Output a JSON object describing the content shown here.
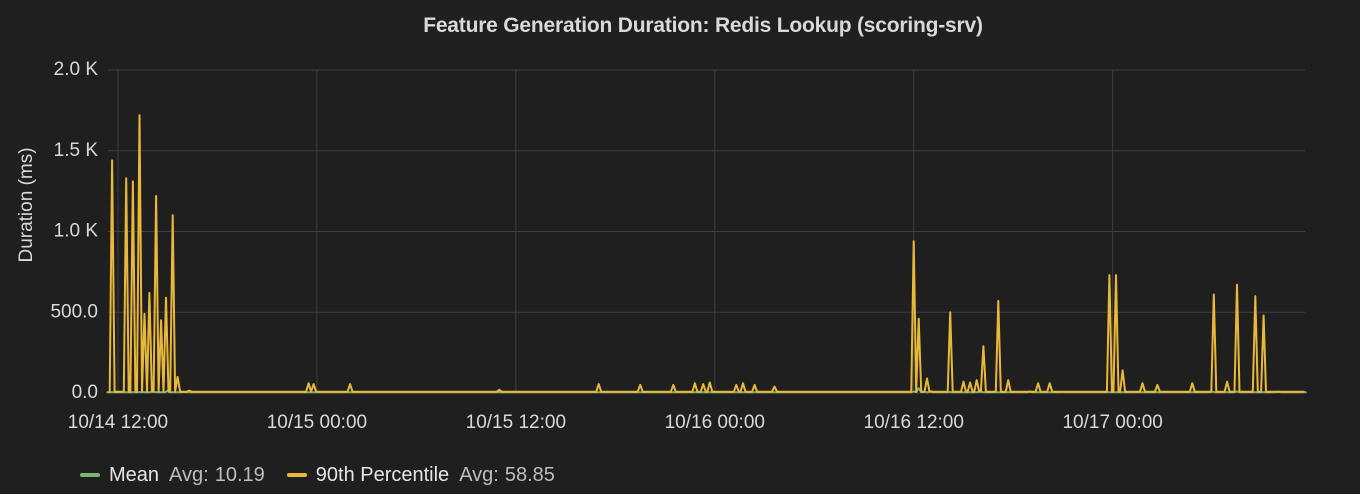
{
  "panel": {
    "title": "Feature Generation Duration: Redis Lookup (scoring-srv)"
  },
  "colors": {
    "background": "#1f1f20",
    "grid": "#3e3f42",
    "text": "#d8d9da",
    "mean": "#7eb26d",
    "p90": "#eab839"
  },
  "legend": {
    "items": [
      {
        "name": "Mean",
        "avg_label": "Avg:",
        "avg_value": "10.19",
        "color": "#7eb26d"
      },
      {
        "name": "90th Percentile",
        "avg_label": "Avg:",
        "avg_value": "58.85",
        "color": "#eab839"
      }
    ]
  },
  "chart_data": {
    "type": "line",
    "title": "Feature Generation Duration: Redis Lookup (scoring-srv)",
    "xlabel": "",
    "ylabel": "Duration (ms)",
    "x_unit": "hours",
    "xlim": [
      -0.6,
      71.6
    ],
    "ylim": [
      0,
      2000
    ],
    "grid": true,
    "legend_position": "bottom-left",
    "y_ticks": [
      {
        "value": 0,
        "label": "0.0"
      },
      {
        "value": 500,
        "label": "500.0"
      },
      {
        "value": 1000,
        "label": "1.0 K"
      },
      {
        "value": 1500,
        "label": "1.5 K"
      },
      {
        "value": 2000,
        "label": "2.0 K"
      }
    ],
    "x_ticks": [
      {
        "value": 0,
        "label": "10/14 12:00"
      },
      {
        "value": 12,
        "label": "10/15 00:00"
      },
      {
        "value": 24,
        "label": "10/15 12:00"
      },
      {
        "value": 36,
        "label": "10/16 00:00"
      },
      {
        "value": 48,
        "label": "10/16 12:00"
      },
      {
        "value": 60,
        "label": "10/17 00:00"
      }
    ],
    "series": [
      {
        "name": "Mean",
        "color": "#7eb26d",
        "baseline": 5,
        "x": [
          -0.5,
          1.5,
          2.1,
          3.0,
          4.0,
          12.0,
          24.0,
          36.0,
          47.0,
          48.0,
          48.3,
          48.6,
          49.0,
          50.2,
          52.0,
          55.0,
          57.0,
          60.0,
          66.0,
          67.5,
          70.0,
          71.5
        ],
        "values": [
          4,
          6,
          12,
          14,
          6,
          5,
          5,
          5,
          5,
          10,
          30,
          8,
          12,
          6,
          14,
          9,
          6,
          6,
          8,
          10,
          8,
          6
        ]
      },
      {
        "name": "90th Percentile",
        "color": "#eab839",
        "baseline": 8,
        "x": [
          -0.35,
          0.5,
          0.9,
          1.3,
          1.6,
          1.9,
          2.3,
          2.6,
          2.9,
          3.3,
          3.6,
          4.3,
          11.5,
          11.8,
          14.0,
          23.0,
          29.0,
          31.5,
          33.5,
          34.8,
          35.3,
          35.7,
          37.3,
          37.7,
          38.4,
          39.6,
          48.0,
          48.3,
          48.8,
          50.2,
          51.0,
          51.4,
          51.8,
          52.2,
          53.1,
          53.7,
          55.5,
          56.2,
          59.8,
          60.2,
          60.6,
          61.8,
          62.7,
          64.8,
          66.1,
          66.9,
          67.5,
          68.6,
          69.1
        ],
        "values": [
          1440,
          1330,
          1310,
          1720,
          490,
          620,
          1220,
          450,
          590,
          1100,
          100,
          15,
          60,
          55,
          55,
          20,
          55,
          50,
          50,
          60,
          55,
          65,
          50,
          60,
          50,
          40,
          940,
          460,
          90,
          500,
          70,
          65,
          80,
          290,
          570,
          80,
          60,
          60,
          730,
          730,
          140,
          60,
          50,
          60,
          610,
          70,
          670,
          600,
          480
        ]
      }
    ]
  }
}
